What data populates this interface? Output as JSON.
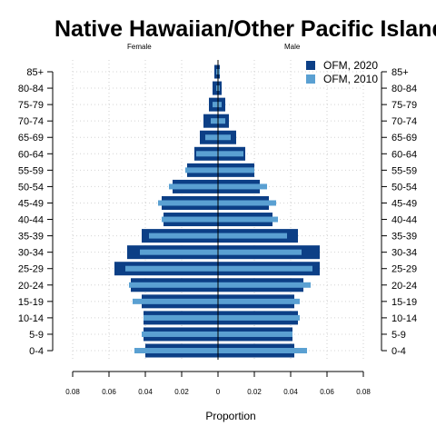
{
  "chart_data": {
    "type": "bar",
    "orientation": "horizontal-pyramid",
    "title": "Native Hawaiian/Other Pacific Islande",
    "left_label": "Female",
    "right_label": "Male",
    "xlabel": "Proportion",
    "xlim": [
      -0.08,
      0.08
    ],
    "x_ticks": [
      "0.08",
      "0.06",
      "0.04",
      "0.02",
      "0",
      "0.02",
      "0.04",
      "0.06",
      "0.08"
    ],
    "grid": true,
    "legend_position": "top-right",
    "categories": [
      "0-4",
      "5-9",
      "10-14",
      "15-19",
      "20-24",
      "25-29",
      "30-34",
      "35-39",
      "40-44",
      "45-49",
      "50-54",
      "55-59",
      "60-64",
      "65-69",
      "70-74",
      "75-79",
      "80-84",
      "85+"
    ],
    "series": [
      {
        "name": "OFM, 2020",
        "color": "#0c3f86",
        "female": [
          0.04,
          0.041,
          0.041,
          0.042,
          0.048,
          0.057,
          0.05,
          0.042,
          0.03,
          0.031,
          0.025,
          0.017,
          0.013,
          0.01,
          0.008,
          0.005,
          0.003,
          0.002
        ],
        "male": [
          0.042,
          0.041,
          0.044,
          0.042,
          0.047,
          0.056,
          0.056,
          0.044,
          0.03,
          0.028,
          0.023,
          0.02,
          0.015,
          0.01,
          0.006,
          0.004,
          0.002,
          0.001
        ]
      },
      {
        "name": "OFM, 2010",
        "color": "#5aa0d2",
        "female": [
          0.046,
          0.042,
          0.041,
          0.047,
          0.049,
          0.051,
          0.043,
          0.038,
          0.031,
          0.033,
          0.027,
          0.018,
          0.012,
          0.007,
          0.004,
          0.003,
          0.001,
          0.001
        ],
        "male": [
          0.049,
          0.041,
          0.045,
          0.045,
          0.051,
          0.052,
          0.046,
          0.038,
          0.033,
          0.032,
          0.027,
          0.02,
          0.014,
          0.007,
          0.004,
          0.002,
          0.001,
          0.001
        ]
      }
    ]
  }
}
